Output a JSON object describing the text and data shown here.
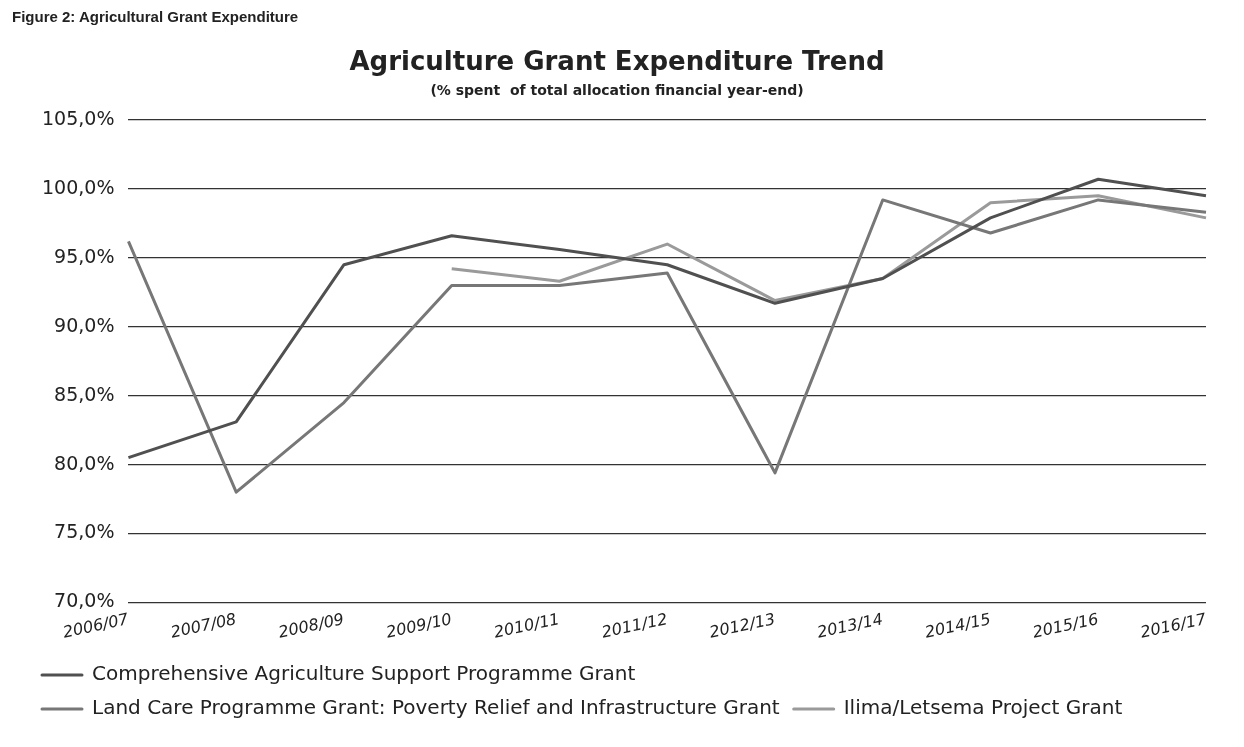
{
  "chart_data": {
    "type": "line",
    "title": "Agriculture Grant Expenditure Trend",
    "subtitle": "(% spent  of total allocation financial year-end)",
    "annotations": [
      "Figure 2: Agricultural Grant Expenditure"
    ],
    "categories": [
      "2006/07",
      "2007/08",
      "2008/09",
      "2009/10",
      "2010/11",
      "2011/12",
      "2012/13",
      "2013/14",
      "2014/15",
      "2015/16",
      "2016/17"
    ],
    "series": [
      {
        "name": "Comprehensive Agriculture Support Programme Grant",
        "color": "#505050",
        "values": [
          80.5,
          83.1,
          94.5,
          96.6,
          95.6,
          94.5,
          91.7,
          93.5,
          97.9,
          100.7,
          99.5
        ]
      },
      {
        "name": "Land Care Programme Grant: Poverty Relief and Infrastructure Grant",
        "color": "#777777",
        "values": [
          96.2,
          78.0,
          84.5,
          93.0,
          93.0,
          93.9,
          79.4,
          99.2,
          96.8,
          99.2,
          98.3
        ]
      },
      {
        "name": "Ilima/Letsema Project Grant",
        "color": "#9a9a9a",
        "values": [
          null,
          null,
          null,
          94.2,
          93.3,
          96.0,
          91.9,
          93.5,
          99.0,
          99.5,
          97.9
        ]
      }
    ],
    "ylim": [
      70,
      105
    ],
    "yticks": [
      {
        "value": 70,
        "label": "70,0%"
      },
      {
        "value": 75,
        "label": "75,0%"
      },
      {
        "value": 80,
        "label": "80,0%"
      },
      {
        "value": 85,
        "label": "85,0%"
      },
      {
        "value": 90,
        "label": "90,0%"
      },
      {
        "value": 95,
        "label": "95,0%"
      },
      {
        "value": 100,
        "label": "100,0%"
      },
      {
        "value": 105,
        "label": "105,0%"
      }
    ],
    "grid": "y",
    "legend": "bottom",
    "marker": "none",
    "line_style": "solid"
  }
}
